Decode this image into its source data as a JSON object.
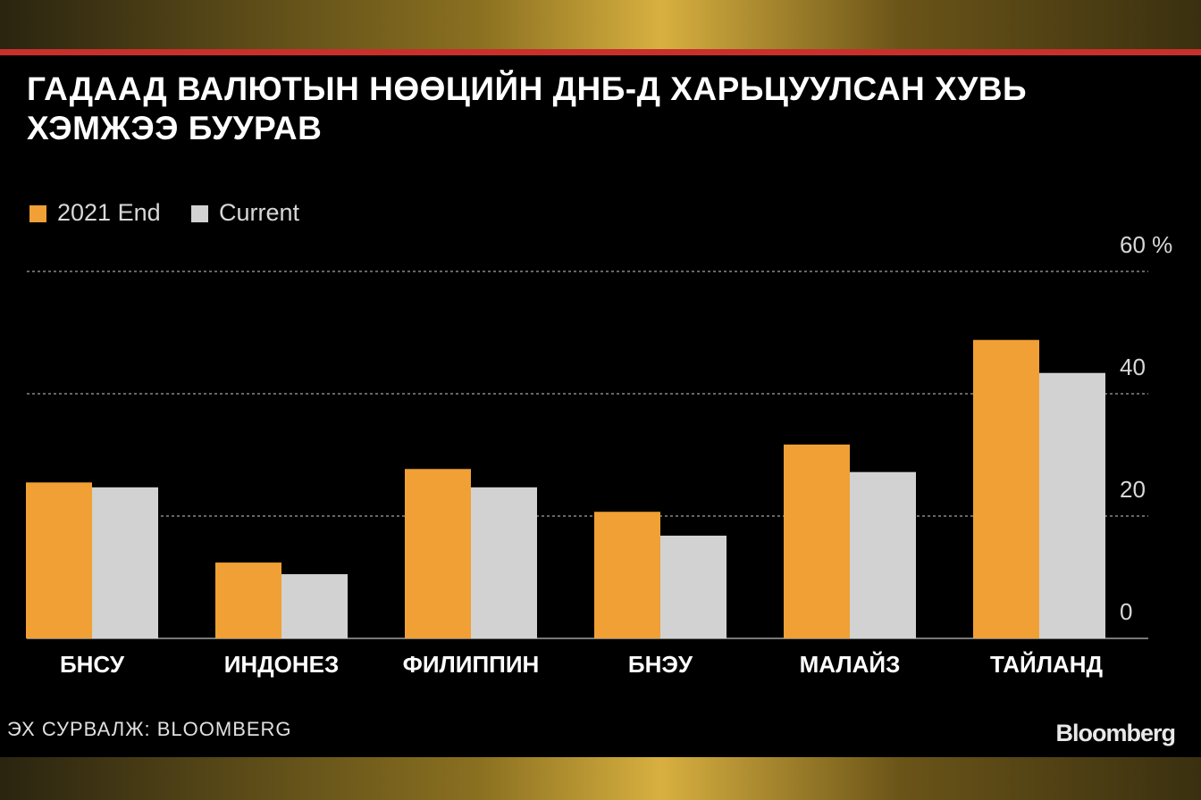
{
  "chart_data": {
    "type": "bar",
    "title": "ГАДААД ВАЛЮТЫН НӨӨЦИЙН ДНБ-Д ХАРЬЦУУЛСАН ХУВЬ ХЭМЖЭЭ БУУРАВ",
    "categories": [
      "БНСУ",
      "ИНДОНЕЗ",
      "ФИЛИППИН",
      "БНЭУ",
      "МАЛАЙЗ",
      "ТАЙЛАНД"
    ],
    "series": [
      {
        "name": "2021 End",
        "color": "#f0a035",
        "values": [
          25.5,
          12.4,
          27.7,
          20.7,
          31.7,
          48.8
        ]
      },
      {
        "name": "Current",
        "color": "#d2d2d2",
        "values": [
          24.7,
          10.5,
          24.7,
          16.8,
          27.2,
          43.4
        ]
      }
    ],
    "ylim": [
      0,
      60
    ],
    "yticks": [
      0,
      20,
      40,
      {
        "value": 60,
        "label": "60 %"
      }
    ],
    "grid": true,
    "source": "ЭХ СУРВАЛЖ: BLOOMBERG",
    "brand": "Bloomberg"
  }
}
